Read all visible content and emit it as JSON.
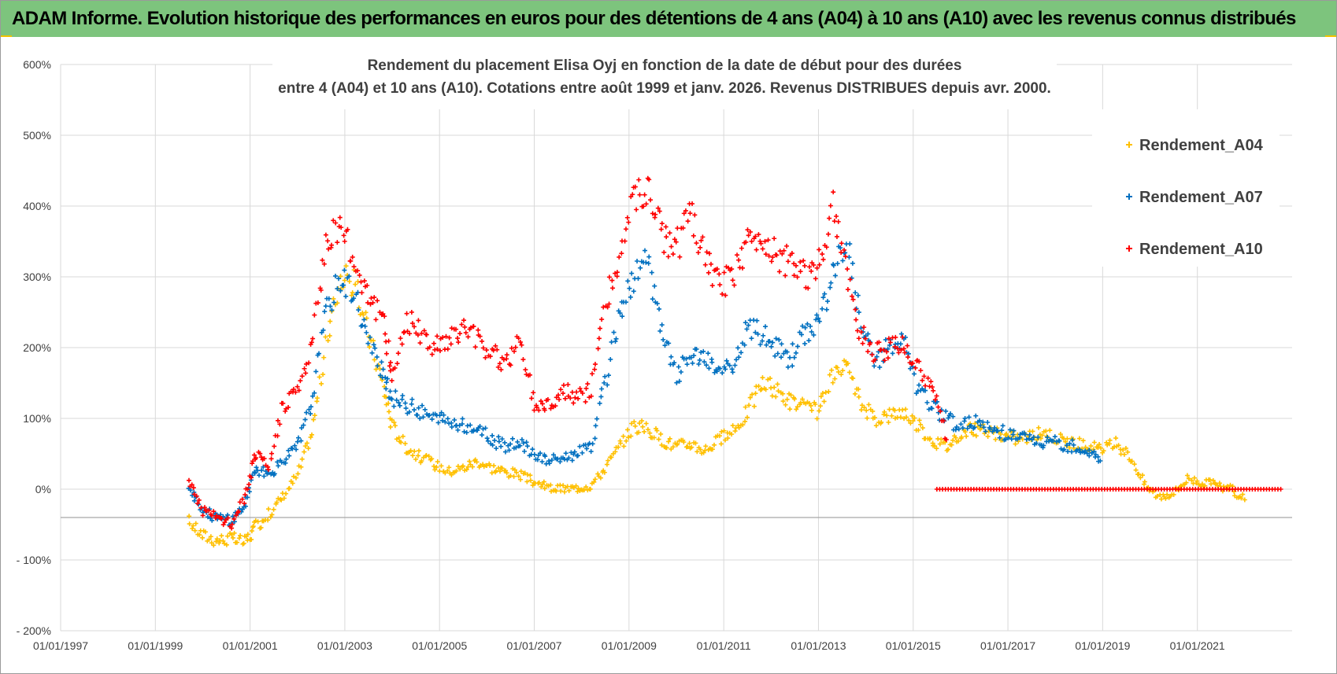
{
  "header": {
    "banner_title": "ADAM Informe. Evolution historique des performances en euros pour des détentions de 4 ans (A04) à 10 ans (A10) avec les revenus connus distribués"
  },
  "colors": {
    "banner_bg": "#7dc47d",
    "accent_corner": "#f2c200",
    "A04": "#ffc000",
    "A07": "#0070c0",
    "A10": "#ff0000",
    "grid": "#d9d9d9",
    "axis_text": "#404040"
  },
  "chart_data": {
    "type": "scatter",
    "title_lines": [
      "Rendement du placement Elisa Oyj en fonction de la date de début pour des durées",
      "entre 4 (A04) et 10 ans (A10). Cotations entre août 1999 et janv. 2026. Revenus DISTRIBUES depuis avr. 2000."
    ],
    "xlabel": "",
    "ylabel": "",
    "x_ticks": [
      "01/01/1997",
      "01/01/1999",
      "01/01/2001",
      "01/01/2003",
      "01/01/2005",
      "01/01/2007",
      "01/01/2009",
      "01/01/2011",
      "01/01/2013",
      "01/01/2015",
      "01/01/2017",
      "01/01/2019",
      "01/01/2021"
    ],
    "x_range": [
      1997.0,
      2023.0
    ],
    "y_ticks": [
      "600%",
      "500%",
      "400%",
      "300%",
      "200%",
      "100%",
      "0%",
      "- 100%",
      "- 200%"
    ],
    "y_range": [
      -200,
      600
    ],
    "grid": true,
    "legend_position": "top-right",
    "series": [
      {
        "name": "Rendement_A04",
        "color": "#ffc000",
        "x": [
          1999.7,
          2000.0,
          2000.3,
          2000.6,
          2000.9,
          2001.1,
          2001.4,
          2001.7,
          2002.0,
          2002.3,
          2002.6,
          2002.9,
          2003.2,
          2003.5,
          2003.8,
          2004.0,
          2004.3,
          2004.6,
          2004.9,
          2005.2,
          2005.5,
          2005.8,
          2006.1,
          2006.4,
          2006.7,
          2007.0,
          2007.3,
          2007.6,
          2007.9,
          2008.2,
          2008.5,
          2008.8,
          2009.1,
          2009.4,
          2009.7,
          2010.0,
          2010.3,
          2010.6,
          2010.9,
          2011.2,
          2011.5,
          2011.8,
          2012.1,
          2012.4,
          2012.7,
          2013.0,
          2013.3,
          2013.6,
          2013.9,
          2014.2,
          2014.5,
          2014.8,
          2015.1,
          2015.4,
          2015.7,
          2016.0,
          2016.3,
          2016.6,
          2016.9,
          2017.2,
          2017.5,
          2017.8,
          2018.1,
          2018.4,
          2018.7,
          2019.0,
          2019.3,
          2019.6,
          2019.9,
          2020.2,
          2020.5,
          2020.8,
          2021.1,
          2021.4,
          2021.7,
          2022.0
        ],
        "y": [
          -45,
          -65,
          -72,
          -70,
          -75,
          -55,
          -35,
          -10,
          20,
          80,
          200,
          300,
          290,
          220,
          150,
          90,
          60,
          45,
          35,
          25,
          30,
          40,
          30,
          25,
          20,
          10,
          2,
          0,
          2,
          5,
          30,
          60,
          90,
          85,
          70,
          60,
          65,
          55,
          70,
          80,
          110,
          150,
          140,
          125,
          115,
          110,
          160,
          170,
          120,
          100,
          105,
          110,
          90,
          70,
          60,
          80,
          85,
          80,
          75,
          72,
          75,
          80,
          70,
          65,
          60,
          55,
          65,
          45,
          5,
          -10,
          -5,
          15,
          10,
          5,
          0,
          -15
        ]
      },
      {
        "name": "Rendement_A07",
        "color": "#0070c0",
        "x": [
          1999.7,
          2000.0,
          2000.3,
          2000.6,
          2000.9,
          2001.1,
          2001.4,
          2001.7,
          2002.0,
          2002.3,
          2002.6,
          2002.9,
          2003.2,
          2003.5,
          2003.8,
          2004.0,
          2004.3,
          2004.6,
          2004.9,
          2005.2,
          2005.5,
          2005.8,
          2006.1,
          2006.4,
          2006.7,
          2007.0,
          2007.3,
          2007.6,
          2007.9,
          2008.2,
          2008.5,
          2008.8,
          2009.1,
          2009.4,
          2009.7,
          2010.0,
          2010.3,
          2010.6,
          2010.9,
          2011.2,
          2011.5,
          2011.8,
          2012.1,
          2012.4,
          2012.7,
          2013.0,
          2013.3,
          2013.6,
          2013.9,
          2014.2,
          2014.5,
          2014.8,
          2015.1,
          2015.4,
          2015.7,
          2016.0,
          2016.3,
          2016.6,
          2016.9,
          2017.2,
          2017.5,
          2017.8,
          2018.1,
          2018.4,
          2018.7,
          2018.95
        ],
        "y": [
          5,
          -30,
          -40,
          -45,
          -20,
          30,
          20,
          40,
          60,
          120,
          250,
          300,
          280,
          210,
          160,
          130,
          120,
          110,
          100,
          95,
          90,
          85,
          70,
          60,
          65,
          50,
          40,
          45,
          50,
          60,
          150,
          250,
          300,
          320,
          220,
          160,
          190,
          180,
          170,
          165,
          230,
          220,
          200,
          185,
          220,
          240,
          300,
          360,
          230,
          180,
          200,
          210,
          140,
          120,
          100,
          90,
          95,
          85,
          80,
          75,
          70,
          65,
          65,
          60,
          55,
          40
        ]
      },
      {
        "name": "Rendement_A10",
        "color": "#ff0000",
        "x": [
          1999.7,
          2000.0,
          2000.3,
          2000.6,
          2000.9,
          2001.1,
          2001.4,
          2001.7,
          2002.0,
          2002.3,
          2002.6,
          2002.9,
          2003.2,
          2003.5,
          2003.8,
          2004.0,
          2004.3,
          2004.6,
          2004.9,
          2005.2,
          2005.5,
          2005.8,
          2006.1,
          2006.4,
          2006.7,
          2007.0,
          2007.3,
          2007.6,
          2007.9,
          2008.2,
          2008.5,
          2008.8,
          2009.1,
          2009.4,
          2009.7,
          2010.0,
          2010.3,
          2010.6,
          2010.9,
          2011.2,
          2011.5,
          2011.8,
          2012.1,
          2012.4,
          2012.7,
          2013.0,
          2013.3,
          2013.6,
          2013.9,
          2014.2,
          2014.5,
          2014.8,
          2015.1,
          2015.4,
          2015.7
        ],
        "y": [
          15,
          -30,
          -40,
          -50,
          -10,
          50,
          30,
          120,
          140,
          200,
          350,
          380,
          320,
          280,
          240,
          160,
          240,
          220,
          200,
          210,
          230,
          215,
          190,
          180,
          210,
          120,
          120,
          140,
          130,
          140,
          260,
          320,
          410,
          420,
          360,
          340,
          390,
          330,
          290,
          300,
          350,
          360,
          330,
          320,
          300,
          320,
          400,
          300,
          220,
          190,
          200,
          200,
          170,
          150,
          70
        ]
      },
      {
        "name": "Rendement_A10 (zero band)",
        "color": "#ff0000",
        "x_range": [
          2015.5,
          2022.8
        ],
        "y_constant": 0
      }
    ]
  }
}
